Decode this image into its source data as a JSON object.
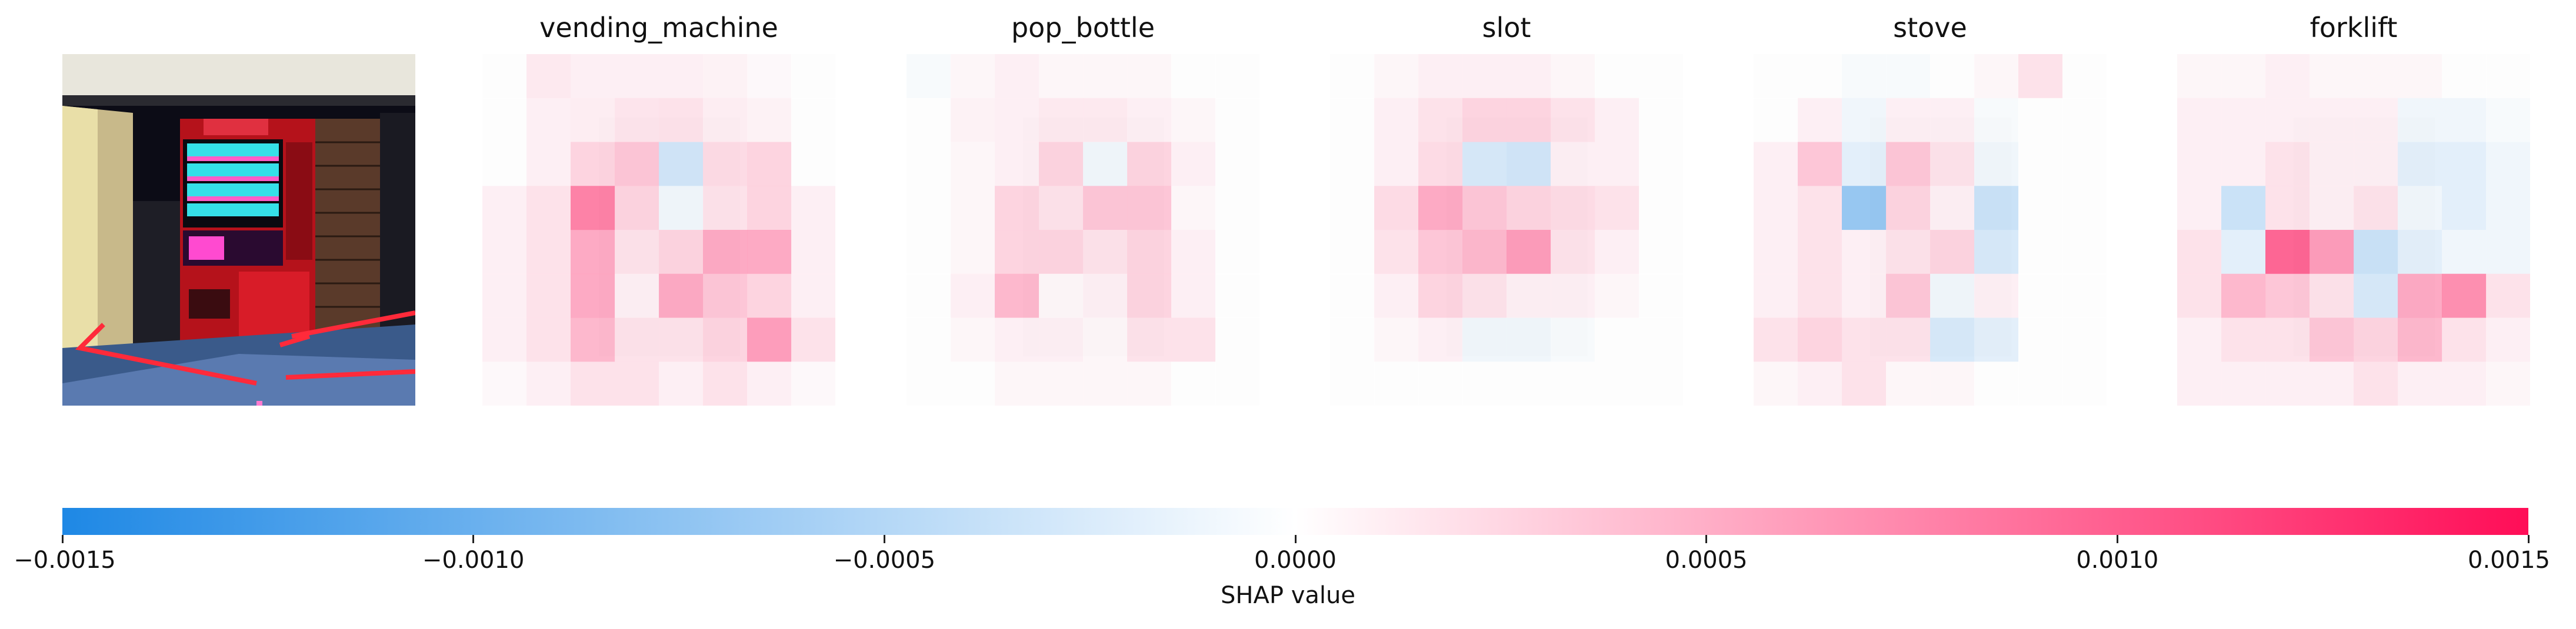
{
  "chart_data": {
    "type": "heatmap",
    "title": "",
    "panels": [
      {
        "name": "vending_machine",
        "grid": [
          [
            0,
            0.00015,
            0.0001,
            0.0001,
            0.0001,
            8e-05,
            4e-05,
            0
          ],
          [
            0,
            0.0001,
            0.00012,
            0.00018,
            0.0002,
            0.00012,
            8e-05,
            0
          ],
          [
            0,
            0.0001,
            0.0003,
            0.0004,
            -0.00035,
            0.00025,
            0.0003,
            0
          ],
          [
            0.0001,
            0.0002,
            0.0009,
            0.0003,
            -0.0001,
            0.0002,
            0.0003,
            0.0001
          ],
          [
            0.0001,
            0.0002,
            0.0006,
            0.0002,
            0.0003,
            0.0006,
            0.0006,
            0.0001
          ],
          [
            0.0001,
            0.0002,
            0.0006,
            0.0001,
            0.0006,
            0.0004,
            0.0003,
            0.0001
          ],
          [
            0.0001,
            0.0002,
            0.0005,
            0.0002,
            0.0002,
            0.0003,
            0.0007,
            0.0002
          ],
          [
            4e-05,
            0.0001,
            0.0002,
            0.0002,
            0.0001,
            0.0002,
            0.0001,
            4e-05
          ]
        ]
      },
      {
        "name": "pop_bottle",
        "grid": [
          [
            -5e-05,
            5e-05,
            0.0001,
            5e-05,
            5e-05,
            5e-05,
            0,
            0
          ],
          [
            0,
            8e-05,
            0.0001,
            0.00015,
            0.00015,
            0.0001,
            5e-05,
            0
          ],
          [
            0,
            5e-05,
            0.0001,
            0.0003,
            -0.0001,
            0.0003,
            0.0001,
            0
          ],
          [
            0,
            5e-05,
            0.0003,
            0.0002,
            0.0004,
            0.0004,
            5e-05,
            0
          ],
          [
            0,
            5e-05,
            0.0003,
            0.0003,
            0.0002,
            0.0003,
            0.0001,
            0
          ],
          [
            0,
            0.0001,
            0.0005,
            5e-05,
            0.0001,
            0.0003,
            0.0001,
            0
          ],
          [
            0,
            5e-05,
            0.0001,
            0.0001,
            5e-05,
            0.0002,
            0.0002,
            0
          ],
          [
            0,
            0,
            5e-05,
            5e-05,
            5e-05,
            5e-05,
            0,
            0
          ]
        ]
      },
      {
        "name": "slot",
        "grid": [
          [
            0,
            5e-05,
            0.0001,
            0.0001,
            0.0001,
            5e-05,
            0,
            0
          ],
          [
            0,
            0.0001,
            0.0002,
            0.0003,
            0.0003,
            0.0002,
            0.0001,
            0
          ],
          [
            0,
            0.0001,
            0.00025,
            -0.0003,
            -0.00035,
            0.0001,
            0.0001,
            0
          ],
          [
            0,
            0.00025,
            0.0006,
            0.0004,
            0.0003,
            0.00025,
            0.0002,
            0
          ],
          [
            0,
            0.0002,
            0.0004,
            0.0005,
            0.0007,
            0.0002,
            0.0001,
            0
          ],
          [
            0,
            0.0001,
            0.0003,
            0.0002,
            0.0001,
            0.0001,
            5e-05,
            0
          ],
          [
            0,
            5e-05,
            0.0001,
            -0.0001,
            -0.0001,
            -5e-05,
            0,
            0
          ],
          [
            0,
            0,
            0,
            0,
            0,
            0,
            0,
            0
          ]
        ]
      },
      {
        "name": "stove",
        "grid": [
          [
            0,
            0,
            -5e-05,
            -5e-05,
            0,
            5e-05,
            0.0002,
            0
          ],
          [
            0,
            0.0001,
            -0.0001,
            0.0001,
            0.0001,
            -5e-05,
            0,
            0
          ],
          [
            0.0001,
            0.0004,
            -0.0002,
            0.0004,
            0.0002,
            -0.0001,
            0,
            0
          ],
          [
            0.0001,
            0.0002,
            -0.0008,
            0.0003,
            0.0001,
            -0.0004,
            0,
            0
          ],
          [
            0.0001,
            0.0002,
            0.0001,
            0.0002,
            0.0003,
            -0.0003,
            0,
            0
          ],
          [
            0.0001,
            0.0002,
            0.0001,
            0.0004,
            -0.0001,
            0.0001,
            0,
            0
          ],
          [
            0.0002,
            0.0003,
            0.0002,
            0.0002,
            -0.0003,
            -0.0002,
            0,
            0
          ],
          [
            5e-05,
            0.0001,
            0.0002,
            5e-05,
            5e-05,
            0,
            0,
            0
          ]
        ]
      },
      {
        "name": "forklift",
        "grid": [
          [
            5e-05,
            5e-05,
            0.0001,
            5e-05,
            5e-05,
            5e-05,
            0,
            0
          ],
          [
            0.0001,
            0.0001,
            0.0001,
            0.0001,
            0.0001,
            -0.0001,
            -0.0001,
            -5e-05
          ],
          [
            0.0001,
            0.0001,
            0.0002,
            0.0001,
            0.0001,
            -0.0002,
            -0.0002,
            -0.0001
          ],
          [
            0.0001,
            -0.0004,
            0.0002,
            0.0001,
            0.0002,
            -0.0001,
            -0.0002,
            -0.0001
          ],
          [
            0.0002,
            -0.0002,
            0.0011,
            0.0007,
            -0.0004,
            -0.0002,
            -0.0001,
            -0.0001
          ],
          [
            0.0002,
            0.0005,
            0.0004,
            0.0002,
            -0.0003,
            0.0006,
            0.0008,
            0.0002
          ],
          [
            0.0001,
            0.0002,
            0.0002,
            0.0004,
            0.0003,
            0.0005,
            0.0002,
            0.0001
          ],
          [
            0.0001,
            0.0001,
            0.0001,
            0.0001,
            0.0002,
            0.0001,
            0.0001,
            5e-05
          ]
        ]
      }
    ],
    "colorbar": {
      "label": "SHAP value",
      "range": [
        -0.0015,
        0.0015
      ],
      "ticks": [
        -0.0015,
        -0.001,
        -0.0005,
        0.0,
        0.0005,
        0.001,
        0.0015
      ],
      "tick_labels": [
        "−0.0015",
        "−0.0010",
        "−0.0005",
        "0.0000",
        "0.0005",
        "0.0010",
        "0.0015"
      ],
      "negative_color": "#1e88e5",
      "positive_color": "#ff0d57"
    }
  }
}
